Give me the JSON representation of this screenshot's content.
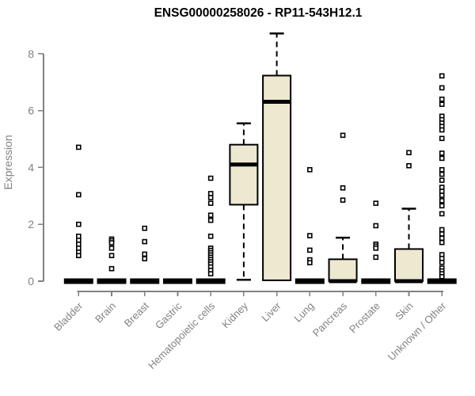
{
  "chart_data": {
    "type": "boxplot",
    "title": "ENSG00000258026 - RP11-543H12.1",
    "ylabel": "Expression",
    "xlabel": "",
    "ylim": [
      0,
      8.8
    ],
    "yticks": [
      0,
      2,
      4,
      6,
      8
    ],
    "grid": false,
    "legend": "none",
    "colors": {
      "box_fill": "#EDE8D0",
      "box_stroke": "#000000",
      "median": "#000000",
      "whisker": "#000000",
      "outlier": "#000000",
      "axis": "#828282",
      "tick_label": "#828282",
      "title": "#000000",
      "background": "#ffffff"
    },
    "categories": [
      "Bladder",
      "Brain",
      "Breast",
      "Gastric",
      "Hematopoietic cells",
      "Kidney",
      "Liver",
      "Lung",
      "Pancreas",
      "Prostate",
      "Skin",
      "Unknown / Other"
    ],
    "series": [
      {
        "label": "Bladder",
        "q1": 0,
        "median": 0,
        "q3": 0,
        "whisker_low": 0,
        "whisker_high": 0,
        "outliers": [
          4.71,
          3.04,
          2.0,
          1.58,
          1.44,
          1.3,
          1.16,
          1.02,
          0.9
        ]
      },
      {
        "label": "Brain",
        "q1": 0,
        "median": 0,
        "q3": 0,
        "whisker_low": 0,
        "whisker_high": 0,
        "outliers": [
          1.48,
          1.42,
          1.35,
          1.16,
          0.9,
          0.44
        ]
      },
      {
        "label": "Breast",
        "q1": 0,
        "median": 0,
        "q3": 0,
        "whisker_low": 0,
        "whisker_high": 0,
        "outliers": [
          1.86,
          1.39,
          0.95,
          0.79
        ]
      },
      {
        "label": "Gastric",
        "q1": 0,
        "median": 0,
        "q3": 0,
        "whisker_low": 0,
        "whisker_high": 0,
        "outliers": []
      },
      {
        "label": "Hematopoietic cells",
        "q1": 0,
        "median": 0,
        "q3": 0,
        "whisker_low": 0,
        "whisker_high": 0,
        "outliers": [
          3.62,
          3.08,
          2.94,
          2.74,
          2.32,
          2.14,
          1.58,
          1.16,
          1.08,
          1.0,
          0.92,
          0.84,
          0.76,
          0.68,
          0.6,
          0.5,
          0.38,
          0.26
        ]
      },
      {
        "label": "Kidney",
        "q1": 2.69,
        "median": 4.1,
        "q3": 4.8,
        "whisker_low": 0.05,
        "whisker_high": 5.55,
        "outliers": []
      },
      {
        "label": "Liver",
        "q1": 0.03,
        "median": 6.31,
        "q3": 7.23,
        "whisker_low": 0.03,
        "whisker_high": 8.71,
        "outliers": []
      },
      {
        "label": "Lung",
        "q1": 0,
        "median": 0,
        "q3": 0,
        "whisker_low": 0,
        "whisker_high": 0,
        "outliers": [
          3.92,
          1.6,
          1.09,
          0.75,
          0.65
        ]
      },
      {
        "label": "Pancreas",
        "q1": 0,
        "median": 0,
        "q3": 0.77,
        "whisker_low": 0,
        "whisker_high": 1.53,
        "outliers": [
          5.13,
          3.28,
          2.85
        ]
      },
      {
        "label": "Prostate",
        "q1": 0,
        "median": 0,
        "q3": 0,
        "whisker_low": 0,
        "whisker_high": 0,
        "outliers": [
          2.74,
          1.95,
          1.3,
          1.23,
          1.16,
          0.84
        ]
      },
      {
        "label": "Skin",
        "q1": 0,
        "median": 0,
        "q3": 1.13,
        "whisker_low": 0,
        "whisker_high": 2.55,
        "outliers": [
          4.52,
          4.06
        ]
      },
      {
        "label": "Unknown / Other",
        "q1": 0,
        "median": 0,
        "q3": 0,
        "whisker_low": 0,
        "whisker_high": 0,
        "outliers": [
          7.22,
          6.8,
          6.4,
          6.22,
          5.8,
          5.68,
          5.56,
          5.44,
          5.32,
          5.02,
          4.5,
          4.32,
          3.92,
          3.76,
          3.55,
          3.3,
          3.16,
          3.02,
          2.83,
          2.65,
          2.37,
          1.81,
          1.66,
          1.51,
          1.36,
          0.93,
          0.8,
          0.66,
          0.46,
          0.36,
          0.26,
          0.16
        ]
      }
    ]
  }
}
